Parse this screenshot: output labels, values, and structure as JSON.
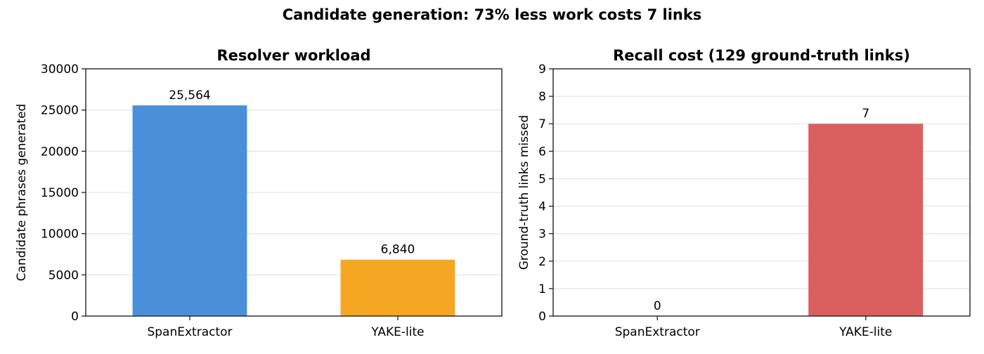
{
  "figure": {
    "title": "Candidate generation: 73% less work costs 7 links"
  },
  "chart_data": [
    {
      "type": "bar",
      "title": "Resolver workload",
      "xlabel": "",
      "ylabel": "Candidate phrases generated",
      "categories": [
        "SpanExtractor",
        "YAKE-lite"
      ],
      "values": [
        25564,
        6840
      ],
      "data_labels": [
        "25,564",
        "6,840"
      ],
      "colors": [
        "#4a90d9",
        "#f5a623"
      ],
      "ylim": [
        0,
        30000
      ],
      "yticks": [
        0,
        5000,
        10000,
        15000,
        20000,
        25000,
        30000
      ],
      "grid": "y"
    },
    {
      "type": "bar",
      "title": "Recall cost (129 ground-truth links)",
      "xlabel": "",
      "ylabel": "Ground-truth links missed",
      "categories": [
        "SpanExtractor",
        "YAKE-lite"
      ],
      "values": [
        0,
        7
      ],
      "data_labels": [
        "0",
        "7"
      ],
      "colors": [
        "#4a90d9",
        "#d9605e"
      ],
      "ylim": [
        0,
        9
      ],
      "yticks": [
        0,
        1,
        2,
        3,
        4,
        5,
        6,
        7,
        8,
        9
      ],
      "grid": "y"
    }
  ]
}
